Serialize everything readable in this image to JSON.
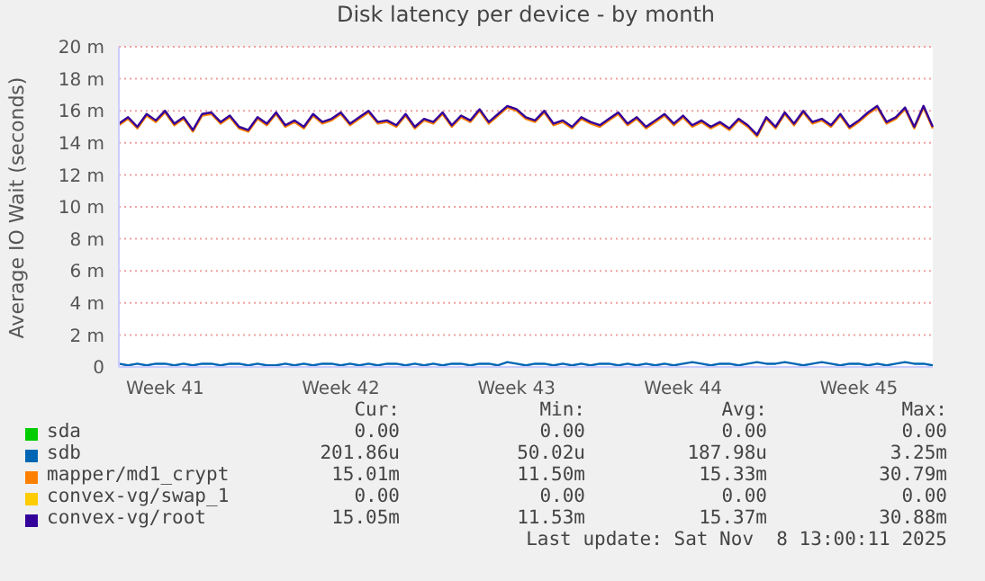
{
  "chart_data": {
    "type": "line",
    "title": "Disk latency per device - by month",
    "ylabel": "Average IO Wait (seconds)",
    "categories": [
      null,
      null,
      null,
      null,
      null,
      "Week 41",
      null,
      null,
      null,
      null,
      null,
      null,
      null,
      null,
      null,
      null,
      null,
      null,
      null,
      null,
      null,
      null,
      null,
      null,
      "Week 42",
      null,
      null,
      null,
      null,
      null,
      null,
      null,
      null,
      null,
      null,
      null,
      null,
      null,
      null,
      null,
      null,
      null,
      null,
      "Week 43",
      null,
      null,
      null,
      null,
      null,
      null,
      null,
      null,
      null,
      null,
      null,
      null,
      null,
      null,
      null,
      null,
      null,
      "Week 44",
      null,
      null,
      null,
      null,
      null,
      null,
      null,
      null,
      null,
      null,
      null,
      null,
      null,
      null,
      null,
      null,
      null,
      null,
      "Week 45",
      null,
      null,
      null,
      null,
      null,
      null,
      null,
      null
    ],
    "series": [
      {
        "name": "sda",
        "color": "#00cc00",
        "values": [
          null,
          null,
          null,
          null,
          null,
          null,
          null,
          null,
          null,
          null,
          null,
          null,
          null,
          null,
          null,
          null,
          null,
          null,
          null,
          null,
          null,
          null,
          null,
          null,
          null,
          null,
          null,
          null,
          null,
          null,
          null,
          null,
          null,
          null,
          null,
          null,
          null,
          null,
          null,
          null,
          null,
          null,
          null,
          null,
          null,
          null,
          null,
          null,
          null,
          null,
          null,
          null,
          null,
          null,
          null,
          null,
          null,
          null,
          null,
          null,
          null,
          null,
          null,
          null,
          null,
          null,
          null,
          null,
          null,
          null,
          null,
          null,
          null,
          null,
          null,
          null,
          null,
          null,
          null,
          null,
          null,
          null,
          null,
          null,
          null,
          null,
          null,
          null,
          null
        ]
      },
      {
        "name": "sdb",
        "color": "#0066b3",
        "values": [
          0.2,
          0.1,
          0.2,
          0.1,
          0.2,
          0.2,
          0.1,
          0.2,
          0.1,
          0.2,
          0.2,
          0.1,
          0.2,
          0.2,
          0.1,
          0.2,
          0.1,
          0.1,
          0.2,
          0.1,
          0.2,
          0.1,
          0.2,
          0.2,
          0.1,
          0.2,
          0.1,
          0.2,
          0.1,
          0.2,
          0.2,
          0.1,
          0.2,
          0.1,
          0.2,
          0.1,
          0.2,
          0.2,
          0.1,
          0.2,
          0.2,
          0.1,
          0.3,
          0.2,
          0.1,
          0.2,
          0.2,
          0.1,
          0.2,
          0.1,
          0.2,
          0.1,
          0.2,
          0.2,
          0.1,
          0.2,
          0.1,
          0.2,
          0.1,
          0.2,
          0.1,
          0.2,
          0.3,
          0.2,
          0.1,
          0.2,
          0.2,
          0.1,
          0.2,
          0.3,
          0.2,
          0.2,
          0.3,
          0.2,
          0.1,
          0.2,
          0.3,
          0.2,
          0.1,
          0.2,
          0.2,
          0.1,
          0.2,
          0.1,
          0.2,
          0.3,
          0.2,
          0.2,
          0.1
        ]
      },
      {
        "name": "mapper/md1_crypt",
        "color": "#ff8000",
        "values": [
          15.1,
          15.5,
          14.9,
          15.7,
          15.3,
          15.9,
          15.1,
          15.5,
          14.7,
          15.7,
          15.8,
          15.2,
          15.6,
          14.9,
          14.7,
          15.5,
          15.1,
          15.8,
          15.0,
          15.3,
          14.9,
          15.7,
          15.2,
          15.4,
          15.8,
          15.1,
          15.5,
          15.9,
          15.2,
          15.3,
          15.0,
          15.7,
          14.9,
          15.4,
          15.2,
          15.8,
          15.0,
          15.6,
          15.3,
          16.0,
          15.2,
          15.7,
          16.2,
          16.0,
          15.5,
          15.3,
          15.9,
          15.1,
          15.3,
          14.9,
          15.5,
          15.2,
          15.0,
          15.4,
          15.8,
          15.1,
          15.5,
          14.9,
          15.3,
          15.7,
          15.1,
          15.6,
          15.0,
          15.3,
          14.9,
          15.2,
          14.8,
          15.4,
          15.0,
          14.4,
          15.5,
          14.9,
          15.8,
          15.1,
          15.9,
          15.2,
          15.4,
          15.0,
          15.7,
          14.9,
          15.3,
          15.8,
          16.2,
          15.2,
          15.5,
          16.1,
          14.9,
          16.2,
          14.9
        ]
      },
      {
        "name": "convex-vg/swap_1",
        "color": "#ffcc00",
        "values": [
          null,
          null,
          null,
          null,
          null,
          null,
          null,
          null,
          null,
          null,
          null,
          null,
          null,
          null,
          null,
          null,
          null,
          null,
          null,
          null,
          null,
          null,
          null,
          null,
          null,
          null,
          null,
          null,
          null,
          null,
          null,
          null,
          null,
          null,
          null,
          null,
          null,
          null,
          null,
          null,
          null,
          null,
          null,
          null,
          null,
          null,
          null,
          null,
          null,
          null,
          null,
          null,
          null,
          null,
          null,
          null,
          null,
          null,
          null,
          null,
          null,
          null,
          null,
          null,
          null,
          null,
          null,
          null,
          null,
          null,
          null,
          null,
          null,
          null,
          null,
          null,
          null,
          null,
          null,
          null,
          null,
          null,
          null,
          null,
          null,
          null,
          null,
          null,
          null
        ]
      },
      {
        "name": "convex-vg/root",
        "color": "#330099",
        "values": [
          15.2,
          15.6,
          15.0,
          15.8,
          15.4,
          16.0,
          15.2,
          15.6,
          14.8,
          15.8,
          15.9,
          15.3,
          15.7,
          15.0,
          14.8,
          15.6,
          15.2,
          15.9,
          15.1,
          15.4,
          15.0,
          15.8,
          15.3,
          15.5,
          15.9,
          15.2,
          15.6,
          16.0,
          15.3,
          15.4,
          15.1,
          15.8,
          15.0,
          15.5,
          15.3,
          15.9,
          15.1,
          15.7,
          15.4,
          16.1,
          15.3,
          15.8,
          16.3,
          16.1,
          15.6,
          15.4,
          16.0,
          15.2,
          15.4,
          15.0,
          15.6,
          15.3,
          15.1,
          15.5,
          15.9,
          15.2,
          15.6,
          15.0,
          15.4,
          15.8,
          15.2,
          15.7,
          15.1,
          15.4,
          15.0,
          15.3,
          14.9,
          15.5,
          15.1,
          14.5,
          15.6,
          15.0,
          15.9,
          15.2,
          16.0,
          15.3,
          15.5,
          15.1,
          15.8,
          15.0,
          15.4,
          15.9,
          16.3,
          15.3,
          15.6,
          16.2,
          15.0,
          16.3,
          15.0
        ]
      }
    ],
    "ylim": [
      0,
      20
    ],
    "yticks": [
      0,
      {
        "value": 2,
        "label": "2 m"
      },
      {
        "value": 4,
        "label": "4 m"
      },
      {
        "value": 6,
        "label": "6 m"
      },
      {
        "value": 8,
        "label": "8 m"
      },
      {
        "value": 10,
        "label": "10 m"
      },
      {
        "value": 12,
        "label": "12 m"
      },
      {
        "value": 14,
        "label": "14 m"
      },
      {
        "value": 16,
        "label": "16 m"
      },
      {
        "value": 18,
        "label": "18 m"
      },
      {
        "value": 20,
        "label": "20 m"
      }
    ],
    "grid": "y",
    "legend": "bottom",
    "marker": "none",
    "line_style": "solid",
    "annotations": [
      "Cur:",
      "Min:",
      "Avg:",
      "Max:",
      "0.00",
      "0.00",
      "0.00",
      "0.00",
      "201.86u",
      "50.02u",
      "187.98u",
      "3.25m",
      "15.01m",
      "11.50m",
      "15.33m",
      "30.79m",
      "0.00",
      "0.00",
      "0.00",
      "0.00",
      "15.05m",
      "11.53m",
      "15.37m",
      "30.88m",
      "Last update: Sat Nov  8 13:00:11 2025"
    ]
  }
}
